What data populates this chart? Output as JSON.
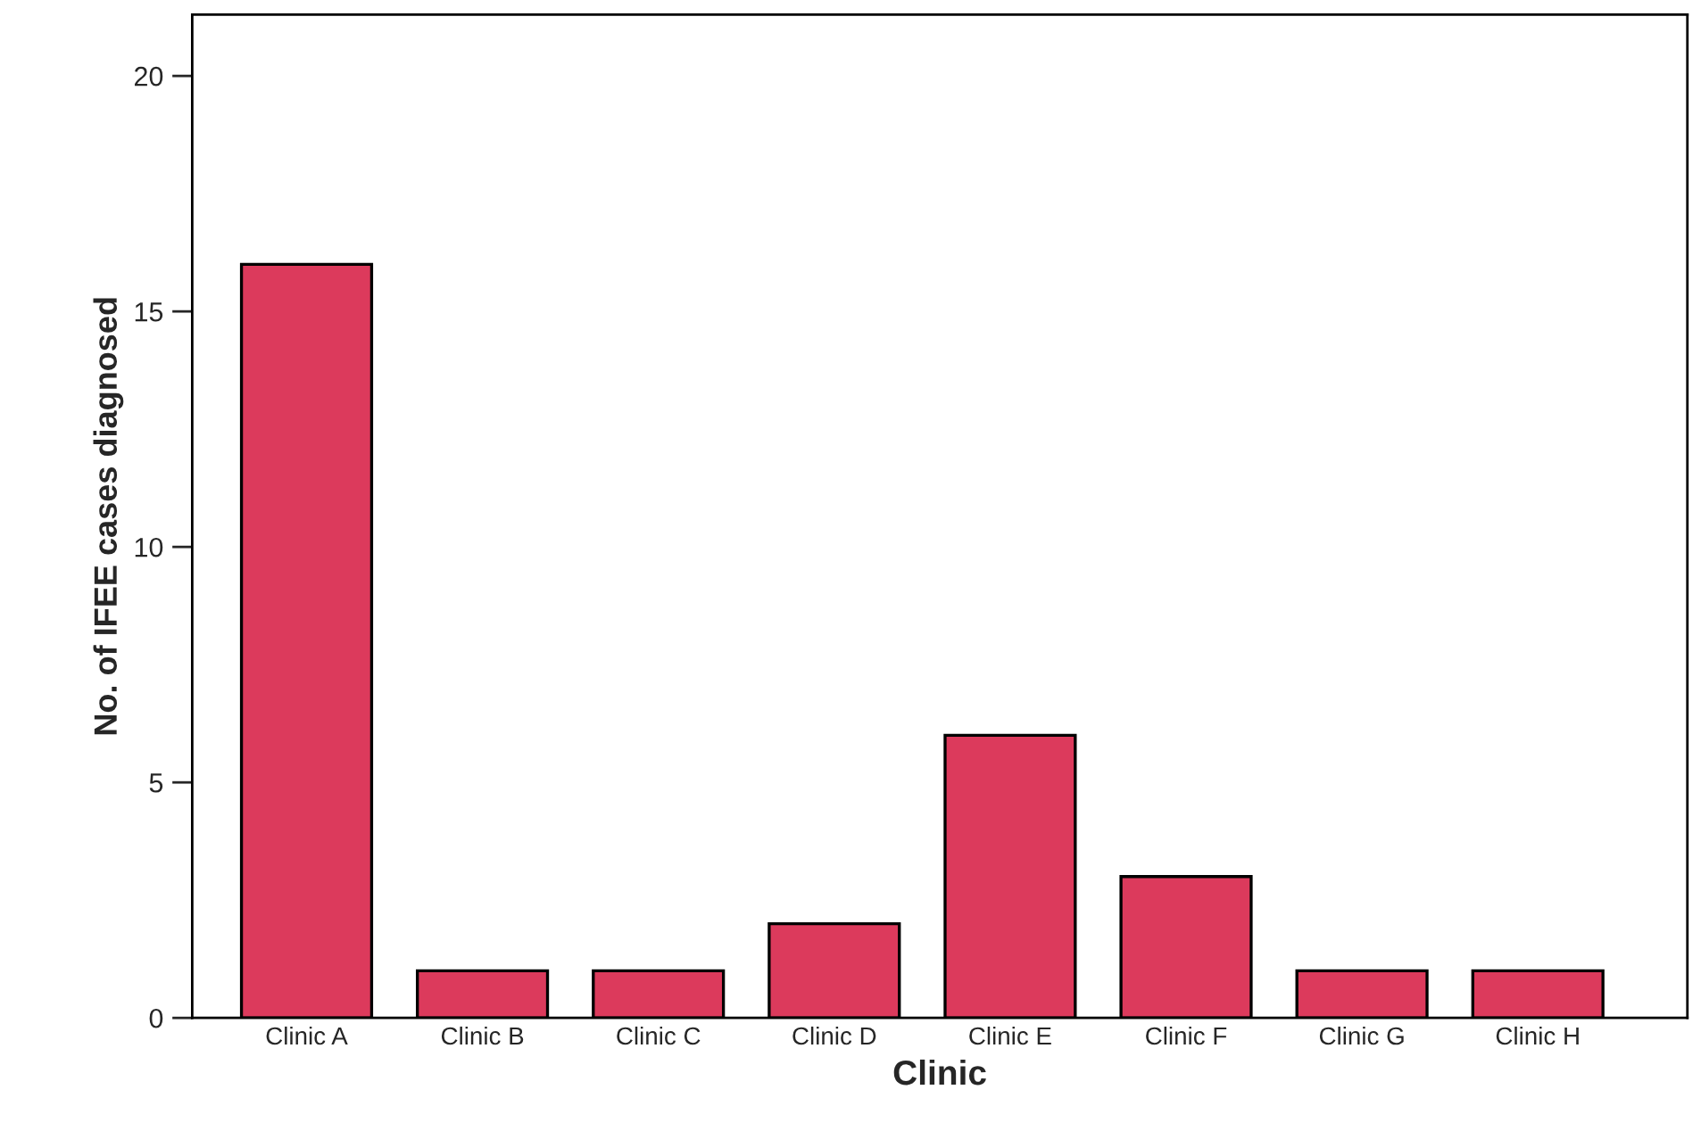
{
  "chart_data": {
    "type": "bar",
    "xlabel": "Clinic",
    "ylabel": "No. of IFEE cases diagnosed",
    "categories": [
      "Clinic A",
      "Clinic B",
      "Clinic C",
      "Clinic D",
      "Clinic E",
      "Clinic F",
      "Clinic G",
      "Clinic H"
    ],
    "values": [
      16,
      1,
      1,
      2,
      6,
      3,
      1,
      1
    ],
    "color": "#dc3a5c",
    "ylim": [
      0,
      21.3
    ],
    "yticks": [
      0,
      5,
      10,
      15,
      20
    ],
    "grid": false
  }
}
